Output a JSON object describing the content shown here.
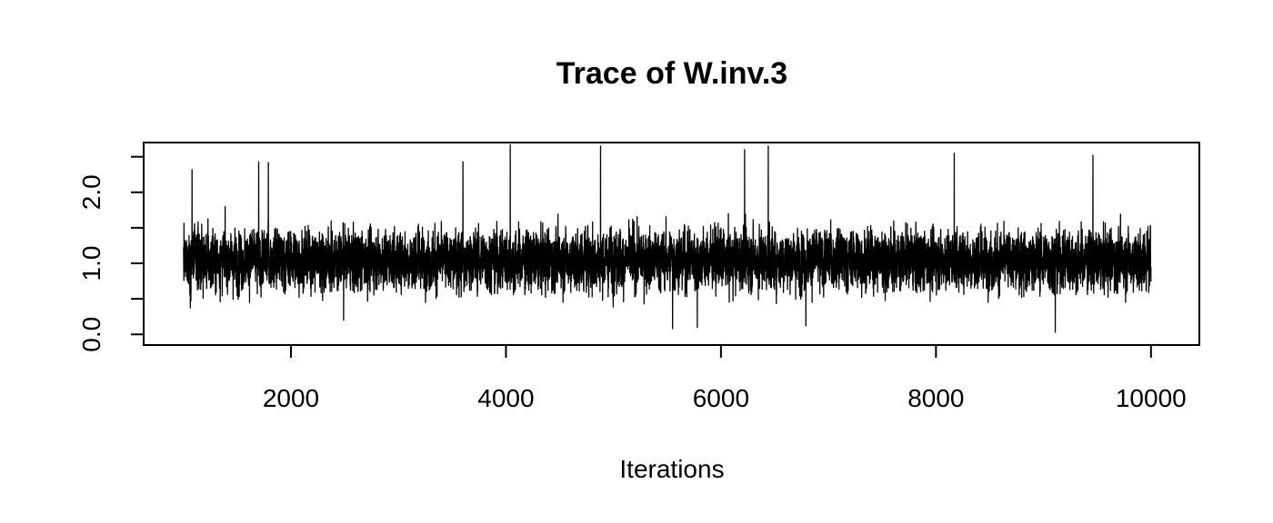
{
  "chart_data": {
    "type": "line",
    "title": "Trace of W.inv.3",
    "xlabel": "Iterations",
    "ylabel": "",
    "xlim": [
      630,
      10450
    ],
    "ylim": [
      -0.15,
      2.7
    ],
    "x_ticks": [
      2000,
      4000,
      6000,
      8000,
      10000
    ],
    "x_tick_labels": [
      "2000",
      "4000",
      "6000",
      "8000",
      "10000"
    ],
    "y_ticks": [
      0.0,
      0.5,
      1.0,
      1.5,
      2.0,
      2.5
    ],
    "y_tick_labels": [
      "0.0",
      "",
      "1.0",
      "",
      "2.0",
      ""
    ],
    "grid": false,
    "legend": "none",
    "line_color": "#000000",
    "series": [
      {
        "x_start": 1001,
        "x_end": 10000,
        "x_step": 1,
        "center": 1.05,
        "typical_range": [
          0.45,
          1.75
        ],
        "min": 0.03,
        "max": 2.67,
        "notable_points": [
          {
            "x": 1080,
            "y": 2.32
          },
          {
            "x": 1700,
            "y": 2.43
          },
          {
            "x": 1790,
            "y": 2.42
          },
          {
            "x": 3600,
            "y": 2.43
          },
          {
            "x": 4040,
            "y": 2.67
          },
          {
            "x": 4880,
            "y": 2.65
          },
          {
            "x": 6220,
            "y": 2.6
          },
          {
            "x": 6440,
            "y": 2.65
          },
          {
            "x": 8170,
            "y": 2.55
          },
          {
            "x": 9460,
            "y": 2.52
          },
          {
            "x": 2490,
            "y": 0.2
          },
          {
            "x": 5550,
            "y": 0.08
          },
          {
            "x": 5780,
            "y": 0.1
          },
          {
            "x": 6790,
            "y": 0.12
          },
          {
            "x": 9110,
            "y": 0.03
          }
        ]
      }
    ]
  }
}
